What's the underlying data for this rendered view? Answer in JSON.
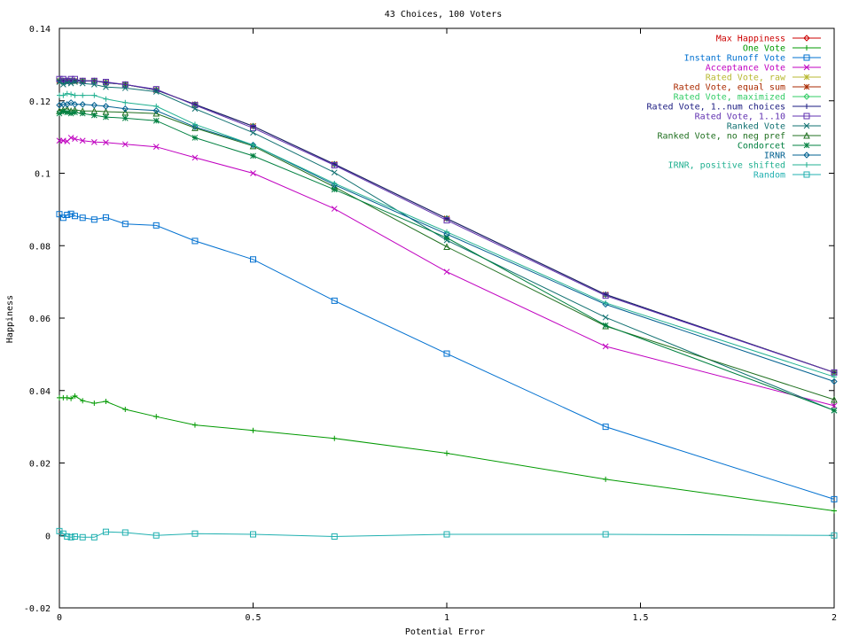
{
  "chart_data": {
    "type": "line",
    "title": "43 Choices, 100 Voters",
    "xlabel": "Potential Error",
    "ylabel": "Happiness",
    "xlim": [
      0,
      2
    ],
    "ylim": [
      -0.02,
      0.14
    ],
    "xticks": [
      "0",
      "0.5",
      "1",
      "1.5",
      "2"
    ],
    "yticks": [
      "-0.02",
      "0",
      "0.02",
      "0.04",
      "0.06",
      "0.08",
      "0.1",
      "0.12",
      "0.14"
    ],
    "grid": false,
    "legend_position": "top-right",
    "x": [
      0,
      0.01,
      0.02,
      0.03,
      0.04,
      0.06,
      0.09,
      0.12,
      0.17,
      0.25,
      0.35,
      0.5,
      0.71,
      1.0,
      1.41,
      2.0
    ],
    "series": [
      {
        "name": "Max Happiness",
        "color": "#cc0000",
        "marker": "diamond",
        "values": [
          0.1255,
          0.1255,
          0.1255,
          0.1255,
          0.1255,
          0.1255,
          0.1255,
          0.125,
          0.1245,
          0.123,
          0.119,
          0.113,
          0.1025,
          0.0875,
          0.0665,
          0.045
        ]
      },
      {
        "name": "One Vote",
        "color": "#009900",
        "marker": "plus",
        "values": [
          0.038,
          0.038,
          0.038,
          0.0378,
          0.0385,
          0.0372,
          0.0365,
          0.037,
          0.0348,
          0.0328,
          0.0305,
          0.029,
          0.0268,
          0.0227,
          0.0155,
          0.0068
        ]
      },
      {
        "name": "Instant Runoff Vote",
        "color": "#0070d0",
        "marker": "square",
        "values": [
          0.0887,
          0.0877,
          0.0885,
          0.0888,
          0.0882,
          0.0877,
          0.0872,
          0.0878,
          0.086,
          0.0856,
          0.0813,
          0.0762,
          0.0648,
          0.0502,
          0.03,
          0.01
        ]
      },
      {
        "name": "Acceptance Vote",
        "color": "#c000c0",
        "marker": "cross",
        "values": [
          0.109,
          0.109,
          0.1088,
          0.1098,
          0.1095,
          0.109,
          0.1086,
          0.1085,
          0.108,
          0.1073,
          0.1043,
          0.1,
          0.0902,
          0.0728,
          0.0522,
          0.0358
        ]
      },
      {
        "name": "Rated Vote, raw",
        "color": "#b8b830",
        "marker": "star",
        "values": [
          0.1255,
          0.1255,
          0.1255,
          0.1255,
          0.1255,
          0.1255,
          0.1255,
          0.125,
          0.1245,
          0.123,
          0.119,
          0.113,
          0.1025,
          0.0875,
          0.0665,
          0.045
        ]
      },
      {
        "name": "Rated Vote, equal sum",
        "color": "#aa2a00",
        "marker": "star",
        "values": [
          0.1255,
          0.1255,
          0.1255,
          0.1255,
          0.1255,
          0.1255,
          0.1255,
          0.125,
          0.1245,
          0.123,
          0.119,
          0.113,
          0.1025,
          0.0875,
          0.0665,
          0.045
        ]
      },
      {
        "name": "Rated Vote, maximized",
        "color": "#33cc66",
        "marker": "diamond",
        "values": [
          0.1255,
          0.1255,
          0.1255,
          0.1255,
          0.1255,
          0.1255,
          0.1255,
          0.125,
          0.1245,
          0.123,
          0.119,
          0.113,
          0.1025,
          0.0875,
          0.0665,
          0.045
        ]
      },
      {
        "name": "Rated Vote, 1..num choices",
        "color": "#1a1a80",
        "marker": "plus",
        "values": [
          0.1255,
          0.1255,
          0.1255,
          0.1255,
          0.1255,
          0.1255,
          0.1255,
          0.125,
          0.1245,
          0.123,
          0.119,
          0.113,
          0.1025,
          0.0875,
          0.0665,
          0.045
        ]
      },
      {
        "name": "Rated Vote, 1..10",
        "color": "#6030b0",
        "marker": "square",
        "values": [
          0.126,
          0.126,
          0.1255,
          0.126,
          0.126,
          0.1255,
          0.1255,
          0.1252,
          0.1245,
          0.1232,
          0.1188,
          0.1125,
          0.1022,
          0.087,
          0.0662,
          0.045
        ]
      },
      {
        "name": "Ranked Vote",
        "color": "#107070",
        "marker": "cross",
        "values": [
          0.1252,
          0.1245,
          0.125,
          0.1248,
          0.1252,
          0.1248,
          0.1245,
          0.1238,
          0.1235,
          0.1225,
          0.1178,
          0.1112,
          0.1002,
          0.0815,
          0.0602,
          0.0345
        ]
      },
      {
        "name": "Ranked Vote, no neg pref",
        "color": "#207020",
        "marker": "triangle",
        "values": [
          0.1172,
          0.1175,
          0.1178,
          0.1172,
          0.1175,
          0.1172,
          0.1172,
          0.117,
          0.1168,
          0.1165,
          0.1125,
          0.1075,
          0.0962,
          0.0797,
          0.0578,
          0.0375
        ]
      },
      {
        "name": "Condorcet",
        "color": "#008040",
        "marker": "star",
        "values": [
          0.1165,
          0.117,
          0.1168,
          0.1165,
          0.1168,
          0.1165,
          0.116,
          0.1155,
          0.1152,
          0.1145,
          0.1098,
          0.1048,
          0.0955,
          0.0822,
          0.058,
          0.0345
        ]
      },
      {
        "name": "IRNR",
        "color": "#006090",
        "marker": "diamond",
        "values": [
          0.1188,
          0.119,
          0.119,
          0.1195,
          0.119,
          0.119,
          0.1188,
          0.1185,
          0.1178,
          0.1173,
          0.1128,
          0.1078,
          0.0968,
          0.0832,
          0.0638,
          0.0425
        ]
      },
      {
        "name": "IRNR, positive shifted",
        "color": "#20b090",
        "marker": "plus",
        "values": [
          0.1215,
          0.1215,
          0.122,
          0.1218,
          0.1215,
          0.1215,
          0.1215,
          0.1205,
          0.1195,
          0.1185,
          0.1135,
          0.1078,
          0.0972,
          0.0838,
          0.0642,
          0.0438
        ]
      },
      {
        "name": "Random",
        "color": "#20b0b0",
        "marker": "square",
        "values": [
          0.0012,
          0.0005,
          -0.0003,
          -0.0005,
          -0.0003,
          -0.0005,
          -0.0005,
          0.001,
          0.0008,
          0.0,
          0.0005,
          0.0003,
          -0.0003,
          0.0003,
          0.0003,
          0.0
        ]
      }
    ]
  }
}
